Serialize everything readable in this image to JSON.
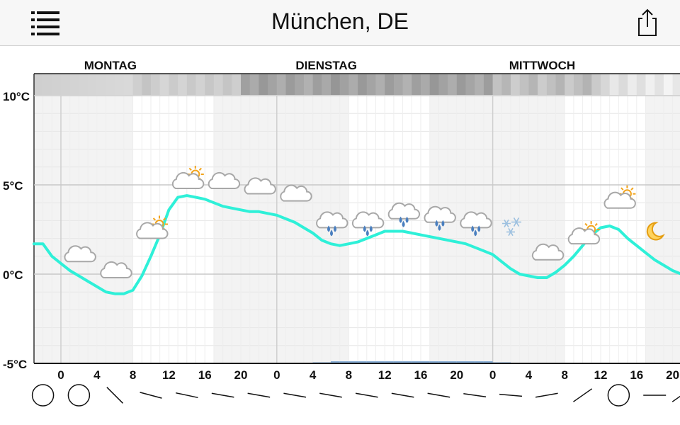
{
  "header": {
    "title": "München, DE",
    "menu_icon": "list-icon",
    "share_icon": "share-icon"
  },
  "days": [
    "MONTAG",
    "DIENSTAG",
    "MITTWOCH"
  ],
  "chart_data": {
    "type": "line",
    "x_tick_labels": [
      "0",
      "4",
      "8",
      "12",
      "16",
      "20",
      "0",
      "4",
      "8",
      "12",
      "16",
      "20",
      "0",
      "4",
      "8",
      "12",
      "16",
      "20"
    ],
    "y_tick_labels": [
      "10°C",
      "5°C",
      "0°C",
      "-5°C"
    ],
    "y_ticks": [
      10,
      5,
      0,
      -5
    ],
    "ylim": [
      -5,
      10
    ],
    "x_unit": "hours since Monday 00:00",
    "xlim": [
      -3,
      69
    ],
    "series": [
      {
        "color": "#2ef0d8",
        "x": [
          -3,
          -2,
          -1,
          0,
          1,
          2,
          3,
          4,
          5,
          6,
          7,
          8,
          9,
          10,
          11,
          12,
          13,
          14,
          15,
          16,
          17,
          18,
          19,
          20,
          21,
          22,
          23,
          24,
          25,
          26,
          27,
          28,
          29,
          30,
          31,
          32,
          33,
          34,
          35,
          36,
          37,
          38,
          39,
          40,
          41,
          42,
          43,
          44,
          45,
          46,
          47,
          48,
          49,
          50,
          51,
          52,
          53,
          54,
          55,
          56,
          57,
          58,
          59,
          60,
          61,
          62,
          63,
          64,
          65,
          66,
          67,
          68,
          69
        ],
        "values": [
          1.7,
          1.7,
          1.0,
          0.6,
          0.2,
          -0.1,
          -0.4,
          -0.7,
          -1.0,
          -1.1,
          -1.1,
          -0.9,
          -0.1,
          1.0,
          2.2,
          3.6,
          4.3,
          4.4,
          4.3,
          4.2,
          4.0,
          3.8,
          3.7,
          3.6,
          3.5,
          3.5,
          3.4,
          3.3,
          3.1,
          2.9,
          2.6,
          2.3,
          1.9,
          1.7,
          1.6,
          1.7,
          1.8,
          2.0,
          2.2,
          2.4,
          2.4,
          2.4,
          2.3,
          2.2,
          2.1,
          2.0,
          1.9,
          1.8,
          1.7,
          1.5,
          1.3,
          1.1,
          0.7,
          0.3,
          0.0,
          -0.1,
          -0.2,
          -0.2,
          0.1,
          0.5,
          1.0,
          1.6,
          2.2,
          2.6,
          2.7,
          2.5,
          2.0,
          1.6,
          1.2,
          0.8,
          0.5,
          0.2,
          0.0
        ]
      }
    ],
    "weather_icons": [
      {
        "hour": 2,
        "temp": 1.1,
        "icon": "cloud-icon"
      },
      {
        "hour": 6,
        "temp": 0.2,
        "icon": "cloud-icon"
      },
      {
        "hour": 10,
        "temp": 2.4,
        "icon": "partly-sunny-icon"
      },
      {
        "hour": 14,
        "temp": 5.2,
        "icon": "partly-sunny-icon"
      },
      {
        "hour": 18,
        "temp": 5.2,
        "icon": "cloud-icon"
      },
      {
        "hour": 22,
        "temp": 4.9,
        "icon": "cloud-icon"
      },
      {
        "hour": 26,
        "temp": 4.5,
        "icon": "cloud-icon"
      },
      {
        "hour": 30,
        "temp": 3.0,
        "icon": "rain-icon"
      },
      {
        "hour": 34,
        "temp": 3.0,
        "icon": "rain-icon"
      },
      {
        "hour": 38,
        "temp": 3.5,
        "icon": "rain-icon"
      },
      {
        "hour": 42,
        "temp": 3.3,
        "icon": "rain-icon"
      },
      {
        "hour": 46,
        "temp": 3.0,
        "icon": "rain-icon"
      },
      {
        "hour": 50,
        "temp": 2.6,
        "icon": "snow-icon"
      },
      {
        "hour": 54,
        "temp": 1.2,
        "icon": "cloud-icon"
      },
      {
        "hour": 58,
        "temp": 2.1,
        "icon": "partly-sunny-icon"
      },
      {
        "hour": 62,
        "temp": 4.1,
        "icon": "partly-sunny-icon"
      },
      {
        "hour": 66,
        "temp": 2.4,
        "icon": "moon-icon"
      }
    ],
    "grid": true
  },
  "wind": [
    {
      "hour": -2,
      "type": "calm-icon"
    },
    {
      "hour": 2,
      "type": "calm-icon"
    },
    {
      "hour": 6,
      "type": "wind-arrow-icon",
      "angle": 45
    },
    {
      "hour": 10,
      "type": "wind-arrow-icon",
      "angle": 15
    },
    {
      "hour": 14,
      "type": "wind-arrow-icon",
      "angle": 12
    },
    {
      "hour": 18,
      "type": "wind-arrow-icon",
      "angle": 10
    },
    {
      "hour": 22,
      "type": "wind-arrow-icon",
      "angle": 10
    },
    {
      "hour": 26,
      "type": "wind-arrow-icon",
      "angle": 10
    },
    {
      "hour": 30,
      "type": "wind-arrow-icon",
      "angle": 10
    },
    {
      "hour": 34,
      "type": "wind-arrow-icon",
      "angle": 10
    },
    {
      "hour": 38,
      "type": "wind-arrow-icon",
      "angle": 10
    },
    {
      "hour": 42,
      "type": "wind-arrow-icon",
      "angle": 10
    },
    {
      "hour": 46,
      "type": "wind-arrow-icon",
      "angle": 8
    },
    {
      "hour": 50,
      "type": "wind-arrow-icon",
      "angle": 5
    },
    {
      "hour": 54,
      "type": "wind-arrow-icon",
      "angle": -10
    },
    {
      "hour": 58,
      "type": "wind-arrow-icon",
      "angle": -35
    },
    {
      "hour": 62,
      "type": "calm-icon"
    },
    {
      "hour": 66,
      "type": "wind-arrow-icon",
      "angle": 0
    },
    {
      "hour": 69,
      "type": "wind-arrow-icon",
      "angle": -35
    }
  ]
}
